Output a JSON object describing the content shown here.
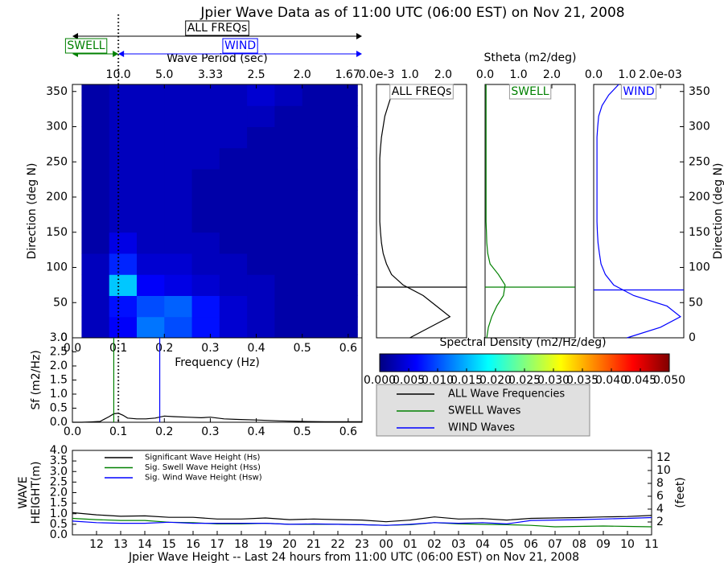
{
  "title": "Jpier Wave Data as of 11:00 UTC (06:00 EST) on Nov 21, 2008",
  "chart_data": [
    {
      "type": "heatmap",
      "xlabel": "Frequency (Hz)",
      "ylabel": "Direction (deg N)",
      "x2label": "Wave Period (sec)",
      "xbins": [
        0.02,
        0.08,
        0.14,
        0.2,
        0.26,
        0.32,
        0.38,
        0.44,
        0.5,
        0.56,
        0.62
      ],
      "ybins": [
        0,
        30,
        60,
        90,
        120,
        150,
        180,
        210,
        240,
        270,
        300,
        330,
        360
      ],
      "values": [
        [
          0.003,
          0.006,
          0.012,
          0.01,
          0.007,
          0.004,
          0.003,
          0.002,
          0.002,
          0.002
        ],
        [
          0.003,
          0.007,
          0.01,
          0.011,
          0.007,
          0.004,
          0.003,
          0.002,
          0.002,
          0.002
        ],
        [
          0.003,
          0.016,
          0.006,
          0.005,
          0.004,
          0.003,
          0.003,
          0.002,
          0.002,
          0.002
        ],
        [
          0.003,
          0.008,
          0.004,
          0.004,
          0.003,
          0.003,
          0.002,
          0.002,
          0.002,
          0.002
        ],
        [
          0.002,
          0.005,
          0.003,
          0.003,
          0.003,
          0.002,
          0.002,
          0.002,
          0.002,
          0.002
        ],
        [
          0.002,
          0.003,
          0.003,
          0.003,
          0.002,
          0.002,
          0.002,
          0.002,
          0.002,
          0.002
        ],
        [
          0.002,
          0.003,
          0.003,
          0.003,
          0.002,
          0.002,
          0.002,
          0.002,
          0.002,
          0.002
        ],
        [
          0.002,
          0.003,
          0.003,
          0.003,
          0.002,
          0.002,
          0.002,
          0.002,
          0.002,
          0.002
        ],
        [
          0.002,
          0.003,
          0.003,
          0.003,
          0.003,
          0.002,
          0.002,
          0.002,
          0.002,
          0.002
        ],
        [
          0.002,
          0.003,
          0.003,
          0.003,
          0.003,
          0.003,
          0.002,
          0.002,
          0.002,
          0.002
        ],
        [
          0.002,
          0.003,
          0.003,
          0.003,
          0.003,
          0.003,
          0.003,
          0.002,
          0.002,
          0.002
        ],
        [
          0.002,
          0.003,
          0.003,
          0.003,
          0.003,
          0.003,
          0.004,
          0.003,
          0.002,
          0.002
        ]
      ],
      "xlim": [
        0,
        0.63
      ],
      "ylim": [
        0,
        360
      ],
      "xticks": [
        {
          "value": 0,
          "label": "0.0"
        },
        0.1,
        0.2,
        0.3,
        0.4,
        0.5,
        0.6
      ],
      "yticks": [
        0,
        50,
        100,
        150,
        200,
        250,
        300,
        350
      ],
      "x2ticks": [
        {
          "value": 10,
          "label": "10.0"
        },
        {
          "value": 5,
          "label": "5.0"
        },
        3.33,
        2.5,
        {
          "value": 2,
          "label": "2.0"
        },
        1.67
      ],
      "separation_frequency": 0.1,
      "annotations": [
        "ALL FREQs",
        "SWELL",
        "WIND"
      ],
      "annotation_colors": [
        "black",
        "green",
        "blue"
      ],
      "colorbar": {
        "label": "Spectral Density (m2/Hz/deg)",
        "colormap": "jet",
        "clim": [
          0,
          0.05
        ],
        "ticks": [
          {
            "value": 0,
            "label": "0.000"
          },
          {
            "value": 0.005,
            "label": "0.005"
          },
          {
            "value": 0.01,
            "label": "0.010"
          },
          {
            "value": 0.015,
            "label": "0.015"
          },
          {
            "value": 0.02,
            "label": "0.020"
          },
          {
            "value": 0.025,
            "label": "0.025"
          },
          {
            "value": 0.03,
            "label": "0.030"
          },
          {
            "value": 0.035,
            "label": "0.035"
          },
          {
            "value": 0.04,
            "label": "0.040"
          },
          {
            "value": 0.045,
            "label": "0.045"
          },
          {
            "value": 0.05,
            "label": "0.050"
          }
        ]
      }
    },
    {
      "type": "line",
      "title": "ALL FREQs",
      "color": "black",
      "y": [
        0,
        15,
        30,
        45,
        60,
        75,
        90,
        105,
        120,
        135,
        150,
        165,
        180,
        195,
        210,
        225,
        240,
        255,
        270,
        285,
        300,
        315,
        330,
        345,
        360
      ],
      "values": [
        1.0,
        1.6,
        2.2,
        1.8,
        1.4,
        0.8,
        0.45,
        0.3,
        0.2,
        0.15,
        0.12,
        0.1,
        0.1,
        0.1,
        0.1,
        0.1,
        0.1,
        0.1,
        0.12,
        0.15,
        0.2,
        0.25,
        0.35,
        0.45,
        0.55
      ],
      "xlim": [
        0,
        2.7
      ],
      "xticks": [
        {
          "value": 0,
          "label": "0.0e-3"
        },
        {
          "value": 1,
          "label": "1.0"
        },
        {
          "value": 2,
          "label": "2.0"
        }
      ],
      "ylim": [
        0,
        360
      ],
      "mean_direction": 72
    },
    {
      "type": "line",
      "title": "SWELL",
      "xlabel": "Stheta (m2/deg)",
      "color": "green",
      "y": [
        0,
        15,
        30,
        45,
        60,
        75,
        90,
        105,
        120,
        135,
        150,
        165,
        180,
        195,
        210,
        225,
        240,
        255,
        270,
        285,
        300,
        315,
        330,
        345,
        360
      ],
      "values": [
        0.05,
        0.1,
        0.2,
        0.35,
        0.55,
        0.6,
        0.4,
        0.15,
        0.08,
        0.05,
        0.04,
        0.03,
        0.03,
        0.03,
        0.03,
        0.03,
        0.03,
        0.03,
        0.03,
        0.03,
        0.03,
        0.03,
        0.03,
        0.03,
        0.03
      ],
      "xlim": [
        0,
        2.7
      ],
      "xticks": [
        {
          "value": 0,
          "label": "0.0"
        },
        {
          "value": 1,
          "label": "1.0"
        },
        {
          "value": 2,
          "label": "2.0"
        }
      ],
      "ylim": [
        0,
        360
      ],
      "mean_direction": 72
    },
    {
      "type": "line",
      "title": "WIND",
      "ylabel": "Direction (deg N)",
      "color": "blue",
      "y": [
        0,
        15,
        30,
        45,
        60,
        75,
        90,
        105,
        120,
        135,
        150,
        165,
        180,
        195,
        210,
        225,
        240,
        255,
        270,
        285,
        300,
        315,
        330,
        345,
        360
      ],
      "values": [
        1.0,
        2.0,
        2.6,
        2.2,
        1.2,
        0.6,
        0.35,
        0.22,
        0.17,
        0.13,
        0.11,
        0.1,
        0.1,
        0.1,
        0.1,
        0.1,
        0.1,
        0.1,
        0.1,
        0.1,
        0.12,
        0.15,
        0.25,
        0.45,
        0.75
      ],
      "xlim": [
        0,
        2.7
      ],
      "xticks": [
        {
          "value": 0,
          "label": "0.0"
        },
        {
          "value": 1,
          "label": "1.0"
        },
        {
          "value": 2,
          "label": "2.0e-03"
        }
      ],
      "ylim": [
        0,
        360
      ],
      "yticks": [
        0,
        50,
        100,
        150,
        200,
        250,
        300,
        350
      ],
      "mean_direction": 68
    },
    {
      "type": "line",
      "ylabel": "Sf (m2/Hz)",
      "color": "black",
      "x": [
        0,
        0.02,
        0.04,
        0.06,
        0.08,
        0.09,
        0.1,
        0.11,
        0.12,
        0.14,
        0.16,
        0.18,
        0.2,
        0.22,
        0.25,
        0.28,
        0.3,
        0.33,
        0.36,
        0.4,
        0.45,
        0.5,
        0.55,
        0.6,
        0.63
      ],
      "values": [
        0,
        0,
        0.01,
        0.03,
        0.2,
        0.3,
        0.32,
        0.25,
        0.15,
        0.12,
        0.12,
        0.15,
        0.22,
        0.2,
        0.18,
        0.16,
        0.18,
        0.12,
        0.1,
        0.08,
        0.05,
        0.03,
        0.02,
        0.02,
        0.02
      ],
      "xlim": [
        0,
        0.63
      ],
      "xticks": [
        {
          "value": 0,
          "label": "0.0"
        },
        0.1,
        0.2,
        0.3,
        0.4,
        0.5,
        0.6
      ],
      "ylim": [
        0,
        3
      ],
      "yticks": [
        {
          "value": 0,
          "label": "0.0"
        },
        0.5,
        {
          "value": 1,
          "label": "1.0"
        },
        1.5,
        {
          "value": 2,
          "label": "2.0"
        },
        2.5,
        {
          "value": 3,
          "label": "3.0"
        }
      ],
      "swell_peak_frequency": 0.09,
      "wind_peak_frequency": 0.19,
      "legend": [
        {
          "name": "ALL Wave Frequencies",
          "color": "black"
        },
        {
          "name": "SWELL Waves",
          "color": "green"
        },
        {
          "name": "WIND Waves",
          "color": "blue"
        }
      ]
    },
    {
      "type": "line",
      "xlabel": "Jpier Wave Height -- Last 24 hours from 11:00 UTC (06:00 EST) on Nov 21, 2008",
      "ylabel": [
        "WAVE",
        "HEIGHT(m)"
      ],
      "y2label": "(feet)",
      "categories": [
        null,
        "12",
        "13",
        "14",
        "15",
        "16",
        "17",
        "18",
        "19",
        "20",
        "21",
        "22",
        "23",
        "00",
        "01",
        "02",
        "03",
        "04",
        "05",
        "06",
        "07",
        "08",
        "09",
        "10",
        "11"
      ],
      "series": [
        {
          "name": "Significant Wave Height (Hs)",
          "color": "black",
          "values": [
            1.05,
            0.95,
            0.88,
            0.9,
            0.83,
            0.83,
            0.75,
            0.75,
            0.8,
            0.72,
            0.75,
            0.72,
            0.7,
            0.62,
            0.7,
            0.85,
            0.75,
            0.77,
            0.7,
            0.78,
            0.8,
            0.82,
            0.85,
            0.87,
            0.92
          ]
        },
        {
          "name": "Sig. Swell Wave Height (Hss)",
          "color": "green",
          "values": [
            0.78,
            0.72,
            0.68,
            0.68,
            0.6,
            0.58,
            0.52,
            0.52,
            0.55,
            0.5,
            0.5,
            0.5,
            0.48,
            0.45,
            0.48,
            0.58,
            0.52,
            0.5,
            0.48,
            0.45,
            0.38,
            0.4,
            0.42,
            0.4,
            0.38
          ]
        },
        {
          "name": "Sig. Wind Wave Height (Hsw)",
          "color": "blue",
          "values": [
            0.65,
            0.58,
            0.55,
            0.55,
            0.6,
            0.55,
            0.55,
            0.55,
            0.55,
            0.5,
            0.52,
            0.5,
            0.48,
            0.45,
            0.5,
            0.58,
            0.55,
            0.58,
            0.52,
            0.68,
            0.7,
            0.72,
            0.75,
            0.78,
            0.82
          ]
        }
      ],
      "ylim": [
        0,
        4
      ],
      "yticks": [
        {
          "value": 0,
          "label": "0.0"
        },
        0.5,
        {
          "value": 1,
          "label": "1.0"
        },
        1.5,
        {
          "value": 2,
          "label": "2.0"
        },
        2.5,
        {
          "value": 3,
          "label": "3.0"
        },
        3.5,
        {
          "value": 4,
          "label": "4.0"
        }
      ],
      "y2lim": [
        0,
        13.12
      ],
      "y2ticks": [
        2,
        4,
        6,
        8,
        10,
        12
      ]
    }
  ]
}
